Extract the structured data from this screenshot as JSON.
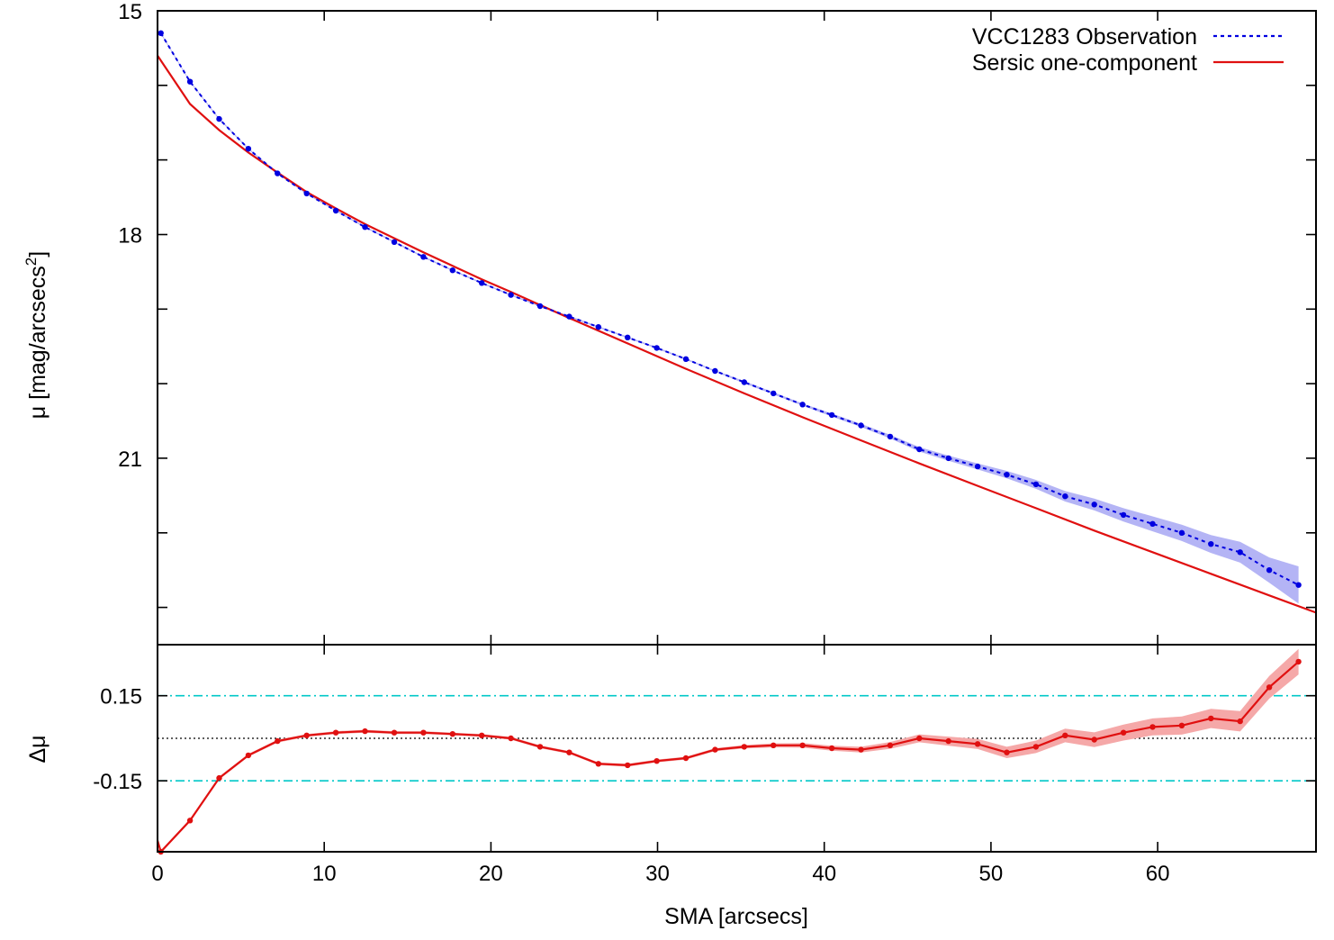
{
  "chart_data": [
    {
      "type": "line",
      "panel": "profile",
      "title": "",
      "xlabel": "",
      "ylabel": "μ [mag/arcsecs²]",
      "ylabel_parts": {
        "main": "μ [mag/arcsecs",
        "sup": "2",
        "end": "]"
      },
      "y_inverted": true,
      "xlim": [
        0,
        69.5
      ],
      "ylim": [
        15.0,
        23.5
      ],
      "y_ticks": [
        15,
        16,
        17,
        18,
        19,
        20,
        21,
        22,
        23
      ],
      "y_tick_labels": [
        {
          "value": 15,
          "label": "15"
        },
        {
          "value": 18,
          "label": "18"
        },
        {
          "value": 21,
          "label": "21"
        }
      ],
      "legend_position": "top-right",
      "series": [
        {
          "name": "VCC1283 Observation",
          "color": "#0000e0",
          "style": "dotted-with-points",
          "x": [
            0.2,
            1.95,
            3.7,
            5.45,
            7.2,
            8.95,
            10.7,
            12.45,
            14.2,
            15.95,
            17.7,
            19.45,
            21.2,
            22.95,
            24.7,
            26.45,
            28.2,
            29.95,
            31.7,
            33.45,
            35.2,
            36.95,
            38.7,
            40.45,
            42.2,
            43.95,
            45.7,
            47.45,
            49.2,
            50.95,
            52.7,
            54.45,
            56.2,
            57.95,
            59.7,
            61.45,
            63.2,
            64.95,
            66.7,
            68.45
          ],
          "y": [
            15.3,
            15.95,
            16.45,
            16.85,
            17.18,
            17.45,
            17.68,
            17.9,
            18.1,
            18.3,
            18.48,
            18.65,
            18.81,
            18.96,
            19.1,
            19.24,
            19.38,
            19.52,
            19.67,
            19.83,
            19.98,
            20.13,
            20.28,
            20.42,
            20.56,
            20.71,
            20.88,
            21.0,
            21.11,
            21.22,
            21.35,
            21.51,
            21.62,
            21.76,
            21.88,
            22.0,
            22.15,
            22.26,
            22.5,
            22.7
          ],
          "error_band_halfwidth": [
            0.01,
            0.01,
            0.01,
            0.01,
            0.01,
            0.01,
            0.01,
            0.01,
            0.01,
            0.01,
            0.01,
            0.01,
            0.01,
            0.01,
            0.01,
            0.01,
            0.01,
            0.01,
            0.01,
            0.01,
            0.015,
            0.015,
            0.015,
            0.02,
            0.02,
            0.025,
            0.03,
            0.035,
            0.04,
            0.05,
            0.06,
            0.07,
            0.08,
            0.09,
            0.1,
            0.11,
            0.12,
            0.14,
            0.17,
            0.25
          ]
        },
        {
          "name": "Sersic one-component",
          "color": "#e01010",
          "style": "solid",
          "x": [
            0,
            1.95,
            3.7,
            5.45,
            7.2,
            8.95,
            10.7,
            12.45,
            14.2,
            15.95,
            17.7,
            19.45,
            21.2,
            24.7,
            28.2,
            31.7,
            35.2,
            38.7,
            42.2,
            45.7,
            49.2,
            52.7,
            56.2,
            59.7,
            63.2,
            66.7,
            69.5
          ],
          "y": [
            15.6,
            16.25,
            16.6,
            16.9,
            17.17,
            17.43,
            17.65,
            17.86,
            18.05,
            18.24,
            18.42,
            18.6,
            18.77,
            19.12,
            19.46,
            19.8,
            20.13,
            20.45,
            20.76,
            21.07,
            21.37,
            21.67,
            21.97,
            22.26,
            22.55,
            22.84,
            23.07
          ]
        }
      ]
    },
    {
      "type": "line",
      "panel": "residuals",
      "title": "",
      "xlabel": "SMA [arcsecs]",
      "ylabel": "Δμ",
      "xlim": [
        0,
        69.5
      ],
      "ylim": [
        -0.4,
        0.33
      ],
      "x_ticks": [
        0,
        10,
        20,
        30,
        40,
        50,
        60
      ],
      "x_tick_labels": [
        "0",
        "10",
        "20",
        "30",
        "40",
        "50",
        "60"
      ],
      "y_tick_labels": [
        {
          "value": 0.15,
          "label": "0.15"
        },
        {
          "value": -0.15,
          "label": "-0.15"
        }
      ],
      "reference_lines": [
        {
          "y": 0.15,
          "style": "dash-dot",
          "color": "#00c8c8"
        },
        {
          "y": -0.15,
          "style": "dash-dot",
          "color": "#00c8c8"
        },
        {
          "y": 0.0,
          "style": "dotted",
          "color": "#000000"
        }
      ],
      "series": [
        {
          "name": "",
          "color": "#e01010",
          "style": "solid-with-points",
          "x": [
            0.2,
            1.95,
            3.7,
            5.45,
            7.2,
            8.95,
            10.7,
            12.45,
            14.2,
            15.95,
            17.7,
            19.45,
            21.2,
            22.95,
            24.7,
            26.45,
            28.2,
            29.95,
            31.7,
            33.45,
            35.2,
            36.95,
            38.7,
            40.45,
            42.2,
            43.95,
            45.7,
            47.45,
            49.2,
            50.95,
            52.7,
            54.45,
            56.2,
            57.95,
            59.7,
            61.45,
            63.2,
            64.95,
            66.7,
            68.45
          ],
          "y": [
            -0.4,
            -0.29,
            -0.14,
            -0.06,
            -0.01,
            0.01,
            0.02,
            0.025,
            0.02,
            0.02,
            0.015,
            0.01,
            0.0,
            -0.03,
            -0.05,
            -0.09,
            -0.095,
            -0.08,
            -0.07,
            -0.04,
            -0.03,
            -0.025,
            -0.025,
            -0.035,
            -0.04,
            -0.025,
            0.0,
            -0.01,
            -0.02,
            -0.05,
            -0.03,
            0.01,
            -0.005,
            0.02,
            0.04,
            0.045,
            0.07,
            0.06,
            0.18,
            0.27
          ],
          "error_band_halfwidth": [
            0.005,
            0.005,
            0.005,
            0.005,
            0.005,
            0.005,
            0.005,
            0.005,
            0.005,
            0.005,
            0.005,
            0.005,
            0.005,
            0.005,
            0.005,
            0.005,
            0.005,
            0.005,
            0.005,
            0.005,
            0.006,
            0.007,
            0.008,
            0.009,
            0.01,
            0.012,
            0.014,
            0.016,
            0.018,
            0.02,
            0.022,
            0.024,
            0.026,
            0.028,
            0.03,
            0.032,
            0.034,
            0.036,
            0.04,
            0.045
          ]
        }
      ]
    }
  ]
}
